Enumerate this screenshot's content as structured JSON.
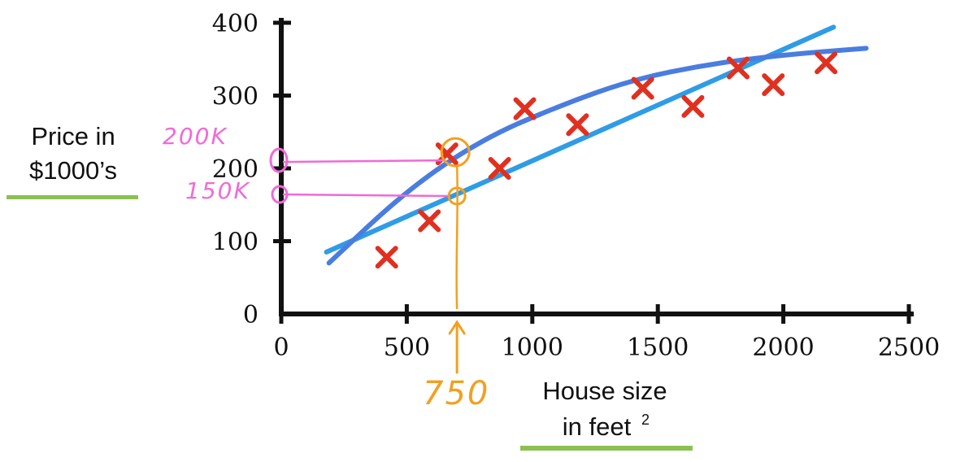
{
  "chart_data": {
    "type": "scatter",
    "xlabel": "House size",
    "xlabel_line2": "in feet",
    "xlabel_sup": "2",
    "ylabel_line1": "Price in",
    "ylabel_line2": "$1000’s",
    "xlim": [
      0,
      2500
    ],
    "ylim": [
      0,
      400
    ],
    "x_ticks": [
      0,
      500,
      1000,
      1500,
      2000,
      2500
    ],
    "y_ticks": [
      0,
      100,
      200,
      300,
      400
    ],
    "x_tick_labels": [
      "0",
      "500",
      "1000",
      "1500",
      "2000",
      "2500"
    ],
    "y_tick_labels": [
      "0",
      "100",
      "200",
      "300",
      "400"
    ],
    "points": [
      {
        "x": 420,
        "y": 78
      },
      {
        "x": 590,
        "y": 128
      },
      {
        "x": 660,
        "y": 220
      },
      {
        "x": 870,
        "y": 200
      },
      {
        "x": 970,
        "y": 282
      },
      {
        "x": 1180,
        "y": 260
      },
      {
        "x": 1440,
        "y": 310
      },
      {
        "x": 1640,
        "y": 285
      },
      {
        "x": 1820,
        "y": 338
      },
      {
        "x": 1960,
        "y": 315
      },
      {
        "x": 2170,
        "y": 345
      }
    ],
    "fits": [
      {
        "kind": "linear",
        "x0": 180,
        "y0": 85,
        "x1": 2200,
        "y1": 394,
        "color": "#2f9ce6"
      },
      {
        "kind": "curve",
        "points": [
          [
            190,
            70
          ],
          [
            500,
            170
          ],
          [
            800,
            240
          ],
          [
            1100,
            285
          ],
          [
            1400,
            322
          ],
          [
            1700,
            343
          ],
          [
            2000,
            356
          ],
          [
            2330,
            365
          ]
        ],
        "color": "#4a7de0"
      }
    ],
    "grid": false
  },
  "annotations": {
    "price_high": "200K",
    "price_low": "150K",
    "query_size": "750",
    "query_x": 700,
    "price_high_value": 220,
    "price_low_value": 162,
    "colors": {
      "data": "#e03020",
      "annotation_pink": "#f06ad8",
      "annotation_orange": "#f2a020",
      "underline": "#8cc152"
    }
  }
}
